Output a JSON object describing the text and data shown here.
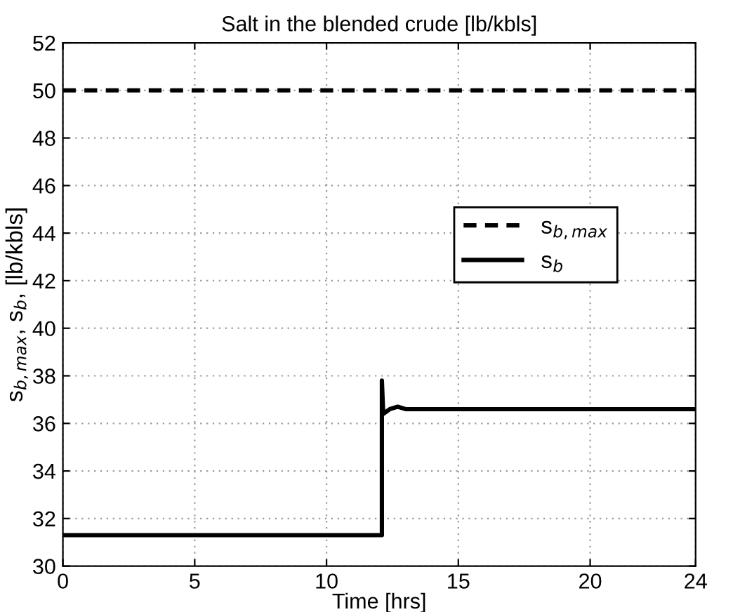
{
  "chart_data": {
    "type": "line",
    "title": "Salt in the blended crude [lb/kbls]",
    "xlabel": "Time [hrs]",
    "ylabel": "s$_{b,max}$, s$_{b}$, [lb/kbls]",
    "series": [
      {
        "name": "s$_{b,max}$",
        "color": "#000000",
        "line_style": "dashed",
        "x": [
          0,
          24
        ],
        "values": [
          50,
          50
        ]
      },
      {
        "name": "s$_{b}$",
        "color": "#000000",
        "line_style": "solid",
        "x": [
          0,
          12.1,
          12.1,
          12.15,
          12.4,
          12.7,
          13.0,
          24
        ],
        "values": [
          31.3,
          31.3,
          37.8,
          36.4,
          36.6,
          36.7,
          36.6,
          36.6
        ]
      }
    ],
    "xlim": [
      0,
      24
    ],
    "xticks": [
      0,
      5,
      10,
      15,
      20,
      24
    ],
    "ylim": [
      30,
      52
    ],
    "yticks": [
      30,
      32,
      34,
      36,
      38,
      40,
      42,
      44,
      46,
      48,
      50,
      52
    ],
    "grid": true,
    "legend": "right"
  }
}
